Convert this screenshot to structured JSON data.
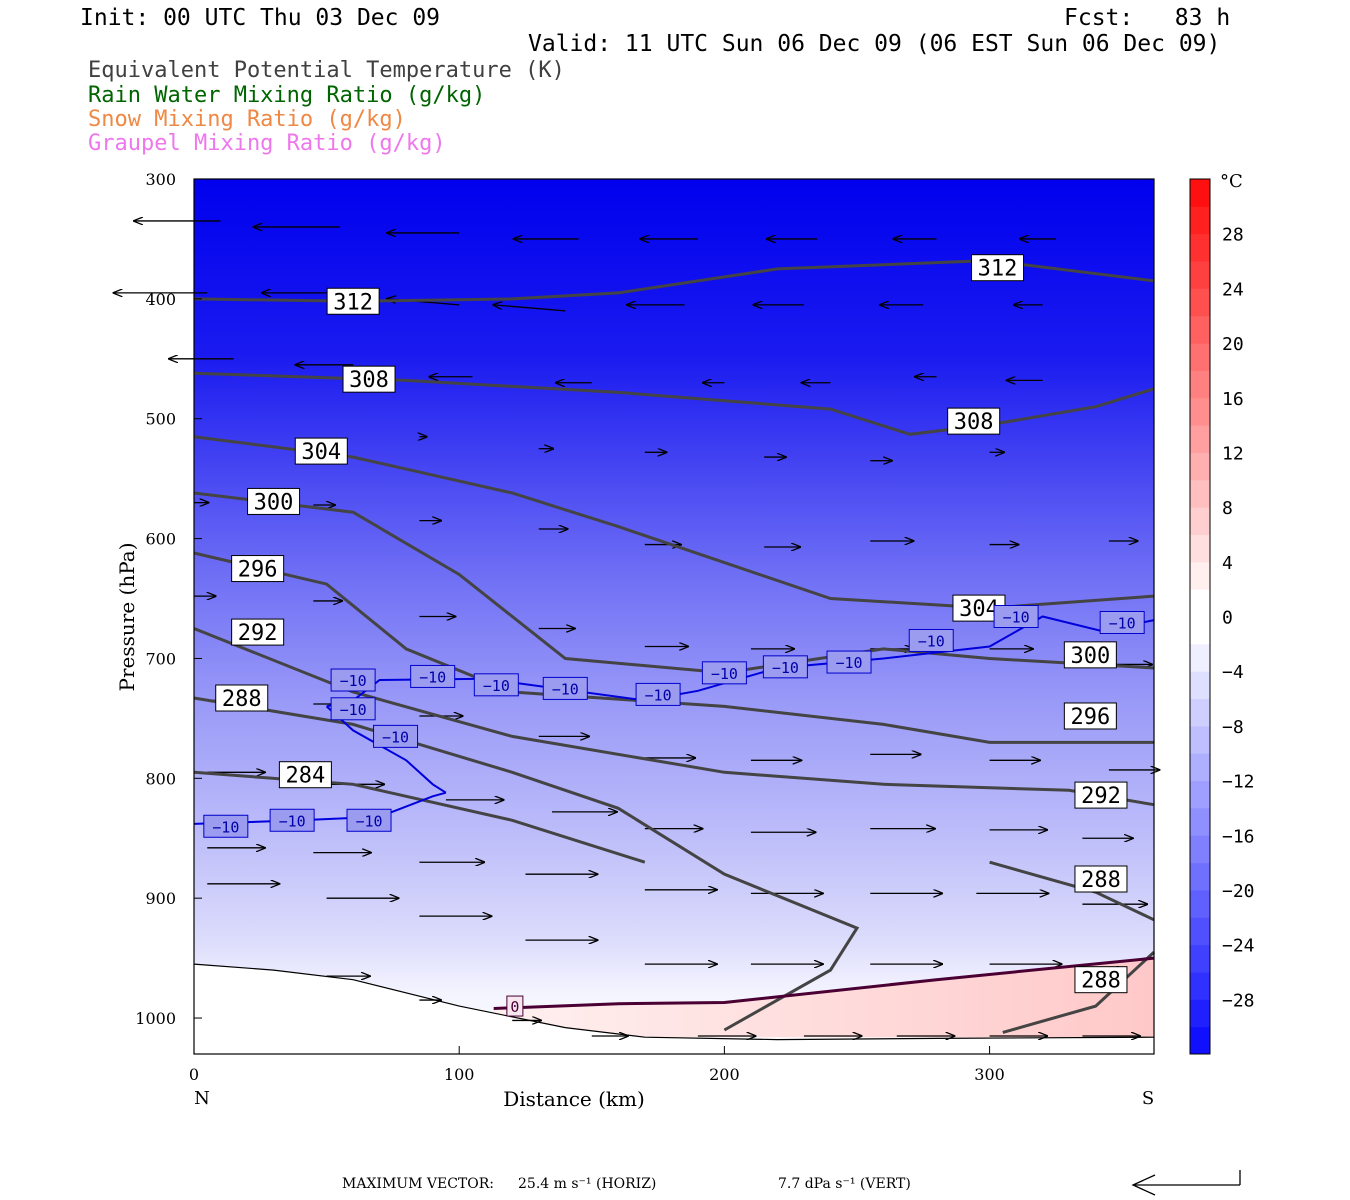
{
  "header": {
    "init": "Init: 00 UTC Thu 03 Dec 09",
    "fcst": "Fcst:   83 h",
    "valid": "Valid: 11 UTC Sun 06 Dec 09 (06 EST Sun 06 Dec 09)"
  },
  "legend": [
    {
      "label": "Equivalent Potential Temperature (K)",
      "color": "#404040"
    },
    {
      "label": "Rain Water Mixing Ratio (g/kg)",
      "color": "#006400"
    },
    {
      "label": "Snow Mixing Ratio (g/kg)",
      "color": "#ee8844"
    },
    {
      "label": "Graupel Mixing Ratio (g/kg)",
      "color": "#ee77ee"
    }
  ],
  "chart_data": {
    "type": "cross-section",
    "xlabel": "Distance (km)",
    "ylabel": "Pressure (hPa)",
    "xlim": [
      0,
      362
    ],
    "ylim": [
      1030,
      300
    ],
    "x_ticks": [
      0,
      100,
      200,
      300
    ],
    "y_ticks": [
      300,
      400,
      500,
      600,
      700,
      800,
      900,
      1000
    ],
    "x_end_labels": {
      "left": "N",
      "right": "S"
    },
    "colorbar": {
      "unit": "°C",
      "ticks": [
        28,
        24,
        20,
        16,
        12,
        8,
        4,
        0,
        -4,
        -8,
        -12,
        -16,
        -20,
        -24,
        -28
      ],
      "tick_labels": [
        "28",
        "24",
        "20",
        "16",
        "12",
        "8",
        "4",
        "0",
        "−4",
        "−8",
        "−12",
        "−16",
        "−20",
        "−24",
        "−28"
      ],
      "range": [
        -32,
        32
      ]
    },
    "theta_e_contours": [
      {
        "label": "312",
        "points": [
          [
            0,
            400
          ],
          [
            60,
            402
          ],
          [
            120,
            400
          ],
          [
            160,
            395
          ],
          [
            220,
            375
          ],
          [
            300,
            368
          ],
          [
            362,
            385
          ]
        ]
      },
      {
        "label": "308",
        "points": [
          [
            0,
            462
          ],
          [
            80,
            468
          ],
          [
            160,
            478
          ],
          [
            240,
            492
          ],
          [
            270,
            513
          ],
          [
            300,
            505
          ],
          [
            340,
            490
          ],
          [
            362,
            475
          ]
        ]
      },
      {
        "label": "304",
        "points": [
          [
            0,
            515
          ],
          [
            60,
            532
          ],
          [
            120,
            562
          ],
          [
            160,
            590
          ],
          [
            200,
            620
          ],
          [
            240,
            650
          ],
          [
            300,
            658
          ],
          [
            362,
            648
          ]
        ]
      },
      {
        "label": "300",
        "points": [
          [
            0,
            562
          ],
          [
            60,
            578
          ],
          [
            100,
            630
          ],
          [
            140,
            700
          ],
          [
            200,
            712
          ],
          [
            260,
            692
          ],
          [
            300,
            700
          ],
          [
            362,
            708
          ]
        ]
      },
      {
        "label": "296",
        "points": [
          [
            0,
            612
          ],
          [
            50,
            638
          ],
          [
            80,
            692
          ],
          [
            120,
            728
          ],
          [
            200,
            740
          ],
          [
            260,
            755
          ],
          [
            300,
            770
          ],
          [
            362,
            770
          ]
        ]
      },
      {
        "label": "292",
        "points": [
          [
            0,
            675
          ],
          [
            60,
            728
          ],
          [
            120,
            765
          ],
          [
            200,
            795
          ],
          [
            260,
            805
          ],
          [
            330,
            810
          ],
          [
            362,
            822
          ]
        ]
      },
      {
        "label": "288",
        "points": [
          [
            0,
            733
          ],
          [
            60,
            755
          ],
          [
            120,
            795
          ],
          [
            160,
            825
          ],
          [
            200,
            880
          ],
          [
            250,
            925
          ],
          [
            240,
            960
          ],
          [
            200,
            1010
          ]
        ]
      },
      {
        "label": "288",
        "points": [
          [
            300,
            870
          ],
          [
            340,
            895
          ],
          [
            362,
            918
          ]
        ]
      },
      {
        "label": "288",
        "points": [
          [
            305,
            1012
          ],
          [
            340,
            990
          ],
          [
            362,
            945
          ]
        ]
      },
      {
        "label": "284",
        "points": [
          [
            0,
            795
          ],
          [
            60,
            805
          ],
          [
            120,
            835
          ],
          [
            170,
            870
          ]
        ]
      }
    ],
    "theta_e_label_positions": [
      {
        "text": "312",
        "x": 60,
        "y": 402
      },
      {
        "text": "312",
        "x": 303,
        "y": 374
      },
      {
        "text": "308",
        "x": 66,
        "y": 467
      },
      {
        "text": "308",
        "x": 294,
        "y": 502
      },
      {
        "text": "304",
        "x": 48,
        "y": 527
      },
      {
        "text": "304",
        "x": 296,
        "y": 658
      },
      {
        "text": "300",
        "x": 30,
        "y": 569
      },
      {
        "text": "300",
        "x": 338,
        "y": 697
      },
      {
        "text": "296",
        "x": 24,
        "y": 625
      },
      {
        "text": "296",
        "x": 338,
        "y": 748
      },
      {
        "text": "292",
        "x": 24,
        "y": 678
      },
      {
        "text": "292",
        "x": 342,
        "y": 814
      },
      {
        "text": "288",
        "x": 18,
        "y": 733
      },
      {
        "text": "288",
        "x": 342,
        "y": 884
      },
      {
        "text": "288",
        "x": 342,
        "y": 968
      },
      {
        "text": "284",
        "x": 42,
        "y": 797
      }
    ],
    "isotherm_minus10": {
      "label": "−10",
      "segment_a": [
        [
          0,
          838
        ],
        [
          40,
          835
        ],
        [
          70,
          832
        ],
        [
          90,
          815
        ],
        [
          95,
          812
        ]
      ],
      "segment_b": [
        [
          50,
          740
        ],
        [
          60,
          735
        ],
        [
          70,
          718
        ],
        [
          110,
          717
        ],
        [
          170,
          735
        ],
        [
          190,
          727
        ],
        [
          220,
          708
        ],
        [
          260,
          700
        ],
        [
          300,
          690
        ],
        [
          320,
          665
        ],
        [
          342,
          677
        ],
        [
          362,
          668
        ]
      ],
      "segment_c": [
        [
          50,
          740
        ],
        [
          60,
          760
        ],
        [
          80,
          785
        ],
        [
          90,
          805
        ],
        [
          95,
          812
        ]
      ],
      "label_positions": [
        [
          12,
          840
        ],
        [
          37,
          835
        ],
        [
          66,
          835
        ],
        [
          76,
          765
        ],
        [
          60,
          742
        ],
        [
          60,
          718
        ],
        [
          90,
          715
        ],
        [
          114,
          722
        ],
        [
          140,
          725
        ],
        [
          175,
          730
        ],
        [
          200,
          712
        ],
        [
          223,
          707
        ],
        [
          247,
          703
        ],
        [
          278,
          685
        ],
        [
          310,
          665
        ],
        [
          350,
          670
        ]
      ]
    },
    "zero_isotherm": {
      "label": "0",
      "points": [
        [
          113,
          992
        ],
        [
          160,
          988
        ],
        [
          200,
          987
        ],
        [
          280,
          968
        ],
        [
          362,
          950
        ]
      ],
      "label_position": [
        121,
        990
      ]
    },
    "terrain": [
      [
        0,
        955
      ],
      [
        30,
        960
      ],
      [
        60,
        968
      ],
      [
        100,
        990
      ],
      [
        140,
        1008
      ],
      [
        170,
        1016
      ],
      [
        220,
        1018
      ],
      [
        280,
        1017
      ],
      [
        362,
        1016
      ]
    ],
    "wind_vectors": [
      {
        "x": 10,
        "p": 335,
        "u": -1.2,
        "v": 0
      },
      {
        "x": 55,
        "p": 340,
        "u": -1.2,
        "v": 0
      },
      {
        "x": 100,
        "p": 345,
        "u": -1.0,
        "v": 0
      },
      {
        "x": 145,
        "p": 350,
        "u": -0.9,
        "v": 0
      },
      {
        "x": 190,
        "p": 350,
        "u": -0.8,
        "v": 0
      },
      {
        "x": 235,
        "p": 350,
        "u": -0.7,
        "v": 0
      },
      {
        "x": 280,
        "p": 350,
        "u": -0.6,
        "v": 0
      },
      {
        "x": 325,
        "p": 350,
        "u": -0.5,
        "v": 0
      },
      {
        "x": 5,
        "p": 395,
        "u": -1.3,
        "v": 0
      },
      {
        "x": 50,
        "p": 395,
        "u": -0.9,
        "v": 0
      },
      {
        "x": 100,
        "p": 405,
        "u": -1.0,
        "v": 0.1
      },
      {
        "x": 140,
        "p": 410,
        "u": -1.0,
        "v": 0.1
      },
      {
        "x": 185,
        "p": 405,
        "u": -0.8,
        "v": 0
      },
      {
        "x": 230,
        "p": 405,
        "u": -0.7,
        "v": 0
      },
      {
        "x": 275,
        "p": 405,
        "u": -0.6,
        "v": 0
      },
      {
        "x": 320,
        "p": 405,
        "u": -0.4,
        "v": 0
      },
      {
        "x": 15,
        "p": 450,
        "u": -0.9,
        "v": 0
      },
      {
        "x": 60,
        "p": 455,
        "u": -0.8,
        "v": 0
      },
      {
        "x": 105,
        "p": 465,
        "u": -0.6,
        "v": 0
      },
      {
        "x": 150,
        "p": 470,
        "u": -0.5,
        "v": 0
      },
      {
        "x": 200,
        "p": 470,
        "u": -0.3,
        "v": 0
      },
      {
        "x": 240,
        "p": 470,
        "u": -0.4,
        "v": 0
      },
      {
        "x": 280,
        "p": 465,
        "u": -0.3,
        "v": 0
      },
      {
        "x": 320,
        "p": 468,
        "u": -0.5,
        "v": 0
      },
      {
        "x": 85,
        "p": 515,
        "u": 0.1,
        "v": 0
      },
      {
        "x": 130,
        "p": 525,
        "u": 0.2,
        "v": 0
      },
      {
        "x": 170,
        "p": 528,
        "u": 0.3,
        "v": 0
      },
      {
        "x": 215,
        "p": 532,
        "u": 0.3,
        "v": 0
      },
      {
        "x": 255,
        "p": 535,
        "u": 0.3,
        "v": 0
      },
      {
        "x": 300,
        "p": 528,
        "u": 0.2,
        "v": 0
      },
      {
        "x": 0,
        "p": 570,
        "u": 0.2,
        "v": 0
      },
      {
        "x": 45,
        "p": 572,
        "u": 0.3,
        "v": 0
      },
      {
        "x": 85,
        "p": 585,
        "u": 0.3,
        "v": 0
      },
      {
        "x": 130,
        "p": 592,
        "u": 0.4,
        "v": 0
      },
      {
        "x": 170,
        "p": 605,
        "u": 0.5,
        "v": 0
      },
      {
        "x": 215,
        "p": 607,
        "u": 0.5,
        "v": 0
      },
      {
        "x": 255,
        "p": 602,
        "u": 0.6,
        "v": 0
      },
      {
        "x": 300,
        "p": 605,
        "u": 0.4,
        "v": 0
      },
      {
        "x": 345,
        "p": 602,
        "u": 0.4,
        "v": 0
      },
      {
        "x": 0,
        "p": 648,
        "u": 0.3,
        "v": 0
      },
      {
        "x": 45,
        "p": 652,
        "u": 0.4,
        "v": 0
      },
      {
        "x": 85,
        "p": 665,
        "u": 0.5,
        "v": 0
      },
      {
        "x": 130,
        "p": 675,
        "u": 0.5,
        "v": 0
      },
      {
        "x": 170,
        "p": 690,
        "u": 0.6,
        "v": 0
      },
      {
        "x": 210,
        "p": 692,
        "u": 0.6,
        "v": 0
      },
      {
        "x": 255,
        "p": 692,
        "u": 0.6,
        "v": 0
      },
      {
        "x": 300,
        "p": 692,
        "u": 0.6,
        "v": 0
      },
      {
        "x": 345,
        "p": 705,
        "u": 0.6,
        "v": 0
      },
      {
        "x": 5,
        "p": 735,
        "u": 0.6,
        "v": 0
      },
      {
        "x": 45,
        "p": 738,
        "u": 0.5,
        "v": 0
      },
      {
        "x": 85,
        "p": 748,
        "u": 0.6,
        "v": 0
      },
      {
        "x": 130,
        "p": 765,
        "u": 0.7,
        "v": 0
      },
      {
        "x": 170,
        "p": 783,
        "u": 0.7,
        "v": 0
      },
      {
        "x": 210,
        "p": 785,
        "u": 0.7,
        "v": 0
      },
      {
        "x": 255,
        "p": 780,
        "u": 0.7,
        "v": 0
      },
      {
        "x": 300,
        "p": 785,
        "u": 0.7,
        "v": 0
      },
      {
        "x": 345,
        "p": 793,
        "u": 0.7,
        "v": 0
      },
      {
        "x": 5,
        "p": 795,
        "u": 0.8,
        "v": 0
      },
      {
        "x": 50,
        "p": 805,
        "u": 0.8,
        "v": 0
      },
      {
        "x": 95,
        "p": 818,
        "u": 0.8,
        "v": 0
      },
      {
        "x": 135,
        "p": 828,
        "u": 0.9,
        "v": 0
      },
      {
        "x": 170,
        "p": 842,
        "u": 0.8,
        "v": 0
      },
      {
        "x": 210,
        "p": 845,
        "u": 0.9,
        "v": 0
      },
      {
        "x": 255,
        "p": 842,
        "u": 0.9,
        "v": 0
      },
      {
        "x": 300,
        "p": 843,
        "u": 0.8,
        "v": 0
      },
      {
        "x": 335,
        "p": 850,
        "u": 0.7,
        "v": 0
      },
      {
        "x": 5,
        "p": 858,
        "u": 0.8,
        "v": 0
      },
      {
        "x": 45,
        "p": 862,
        "u": 0.8,
        "v": 0
      },
      {
        "x": 85,
        "p": 870,
        "u": 0.9,
        "v": 0
      },
      {
        "x": 125,
        "p": 880,
        "u": 1.0,
        "v": 0
      },
      {
        "x": 170,
        "p": 893,
        "u": 1.0,
        "v": 0
      },
      {
        "x": 210,
        "p": 896,
        "u": 1.0,
        "v": 0
      },
      {
        "x": 255,
        "p": 896,
        "u": 1.0,
        "v": 0
      },
      {
        "x": 295,
        "p": 896,
        "u": 1.0,
        "v": 0
      },
      {
        "x": 335,
        "p": 905,
        "u": 0.9,
        "v": 0
      },
      {
        "x": 5,
        "p": 888,
        "u": 1.0,
        "v": 0
      },
      {
        "x": 50,
        "p": 900,
        "u": 1.0,
        "v": 0
      },
      {
        "x": 85,
        "p": 915,
        "u": 1.0,
        "v": 0
      },
      {
        "x": 125,
        "p": 935,
        "u": 1.0,
        "v": 0
      },
      {
        "x": 170,
        "p": 955,
        "u": 1.0,
        "v": 0
      },
      {
        "x": 210,
        "p": 955,
        "u": 1.0,
        "v": 0
      },
      {
        "x": 255,
        "p": 955,
        "u": 1.0,
        "v": 0
      },
      {
        "x": 300,
        "p": 955,
        "u": 1.0,
        "v": 0
      },
      {
        "x": 335,
        "p": 960,
        "u": 0.6,
        "v": 0
      },
      {
        "x": 50,
        "p": 965,
        "u": 0.6,
        "v": 0
      },
      {
        "x": 85,
        "p": 985,
        "u": 0.3,
        "v": 0
      },
      {
        "x": 120,
        "p": 1002,
        "u": 0.4,
        "v": 0
      },
      {
        "x": 150,
        "p": 1015,
        "u": 0.5,
        "v": 0
      },
      {
        "x": 190,
        "p": 1015,
        "u": 0.8,
        "v": 0
      },
      {
        "x": 230,
        "p": 1015,
        "u": 0.8,
        "v": 0
      },
      {
        "x": 265,
        "p": 1015,
        "u": 0.8,
        "v": 0
      },
      {
        "x": 300,
        "p": 1015,
        "u": 0.8,
        "v": 0
      },
      {
        "x": 335,
        "p": 1015,
        "u": 0.8,
        "v": 0
      }
    ]
  },
  "footer": {
    "max_vector_label": "MAXIMUM VECTOR:",
    "horiz": "25.4 m s⁻¹ (HORIZ)",
    "vert": "7.7 dPa s⁻¹ (VERT)"
  }
}
